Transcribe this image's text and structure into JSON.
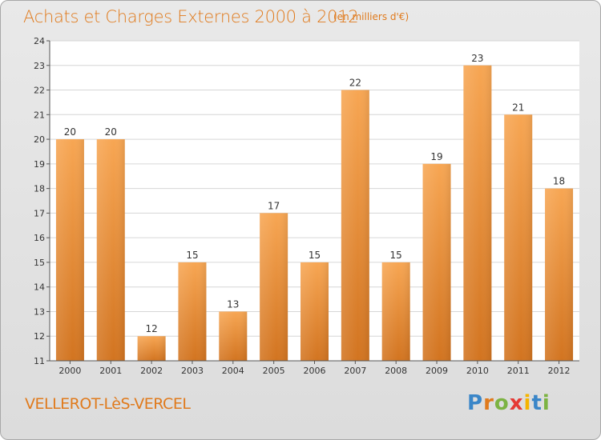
{
  "header": {
    "title": "Achats et Charges Externes 2000 à 2012",
    "unit": "(en milliers d'€)"
  },
  "footer": {
    "commune": "VELLEROT-LèS-VERCEL",
    "brand_letters": [
      {
        "char": "P",
        "color": "#3a86c8"
      },
      {
        "char": "r",
        "color": "#e07a1c"
      },
      {
        "char": "o",
        "color": "#7cb342"
      },
      {
        "char": "x",
        "color": "#e53935"
      },
      {
        "char": "i",
        "color": "#f5b400"
      },
      {
        "char": "t",
        "color": "#3a86c8"
      },
      {
        "char": "i",
        "color": "#7cb342"
      }
    ]
  },
  "colors": {
    "bar_light": "#f7a653",
    "bar_dark": "#d27420",
    "accent": "#e07a1c"
  },
  "chart_data": {
    "type": "bar",
    "title": "Achats et Charges Externes 2000 à 2012",
    "subtitle": "(en milliers d'€)",
    "categories": [
      "2000",
      "2001",
      "2002",
      "2003",
      "2004",
      "2005",
      "2006",
      "2007",
      "2008",
      "2009",
      "2010",
      "2011",
      "2012"
    ],
    "values": [
      20,
      20,
      12,
      15,
      13,
      17,
      15,
      22,
      15,
      19,
      23,
      21,
      18
    ],
    "ylim": [
      11,
      24
    ],
    "yticks": [
      11,
      12,
      13,
      14,
      15,
      16,
      17,
      18,
      19,
      20,
      21,
      22,
      23,
      24
    ],
    "grid": true,
    "data_labels": true
  }
}
